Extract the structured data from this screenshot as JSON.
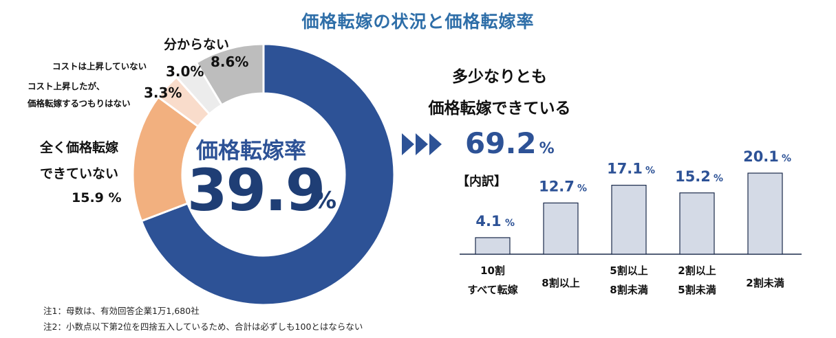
{
  "title": "価格転嫁の状況と価格転嫁率",
  "donut": {
    "center_label": "価格転嫁率",
    "center_value": "39.9",
    "center_unit": "%",
    "labels": {
      "unknown_title": "分からない",
      "unknown_pct": "8.6%",
      "no_cost_rise_title": "コストは上昇していない",
      "no_cost_rise_pct": "3.0%",
      "plan_line1": "コスト上昇したが、",
      "plan_line2": "価格転嫁するつもりはない",
      "plan_pct": "3.3%",
      "none_line1": "全く価格転嫁",
      "none_line2": "できていない",
      "none_pct": "15.9 %"
    }
  },
  "headline": {
    "line1": "多少なりとも",
    "line2": "価格転嫁できている",
    "value": "69.2",
    "unit": "%"
  },
  "breakdown_label": "【内訳】",
  "notes": {
    "note1": "注1：母数は、有効回答企業1万1,680社",
    "note2": "注2：小数点以下第2位を四捨五入しているため、合計は必ずしも100とはならない"
  },
  "colors": {
    "title": "#2e6ea8",
    "navy": "#2d5296",
    "orange": "#f2b07f",
    "peach": "#f9dccb",
    "light_gray": "#ececec",
    "gray": "#bdbdbd",
    "bar_fill": "#d4dae6",
    "bar_stroke": "#1a2a4a"
  },
  "chart_data": [
    {
      "type": "pie",
      "title": "価格転嫁率",
      "slices": [
        {
          "label": "多少なりとも価格転嫁できている",
          "value": 69.2,
          "color": "#2d5296"
        },
        {
          "label": "全く価格転嫁できていない",
          "value": 15.9,
          "color": "#f2b07f"
        },
        {
          "label": "コスト上昇したが、価格転嫁するつもりはない",
          "value": 3.3,
          "color": "#f9dccb"
        },
        {
          "label": "コストは上昇していない",
          "value": 3.0,
          "color": "#ececec"
        },
        {
          "label": "分からない",
          "value": 8.6,
          "color": "#bdbdbd"
        }
      ]
    },
    {
      "type": "bar",
      "categories": [
        [
          "10割",
          "すべて転嫁"
        ],
        [
          "8割以上"
        ],
        [
          "5割以上",
          "8割未満"
        ],
        [
          "2割以上",
          "5割未満"
        ],
        [
          "2割未満"
        ]
      ],
      "values": [
        4.1,
        12.7,
        17.1,
        15.2,
        20.1
      ],
      "value_labels": [
        "4.1",
        "12.7",
        "17.1",
        "15.2",
        "20.1"
      ],
      "unit": "%",
      "ylim": [
        0,
        20.1
      ]
    }
  ]
}
